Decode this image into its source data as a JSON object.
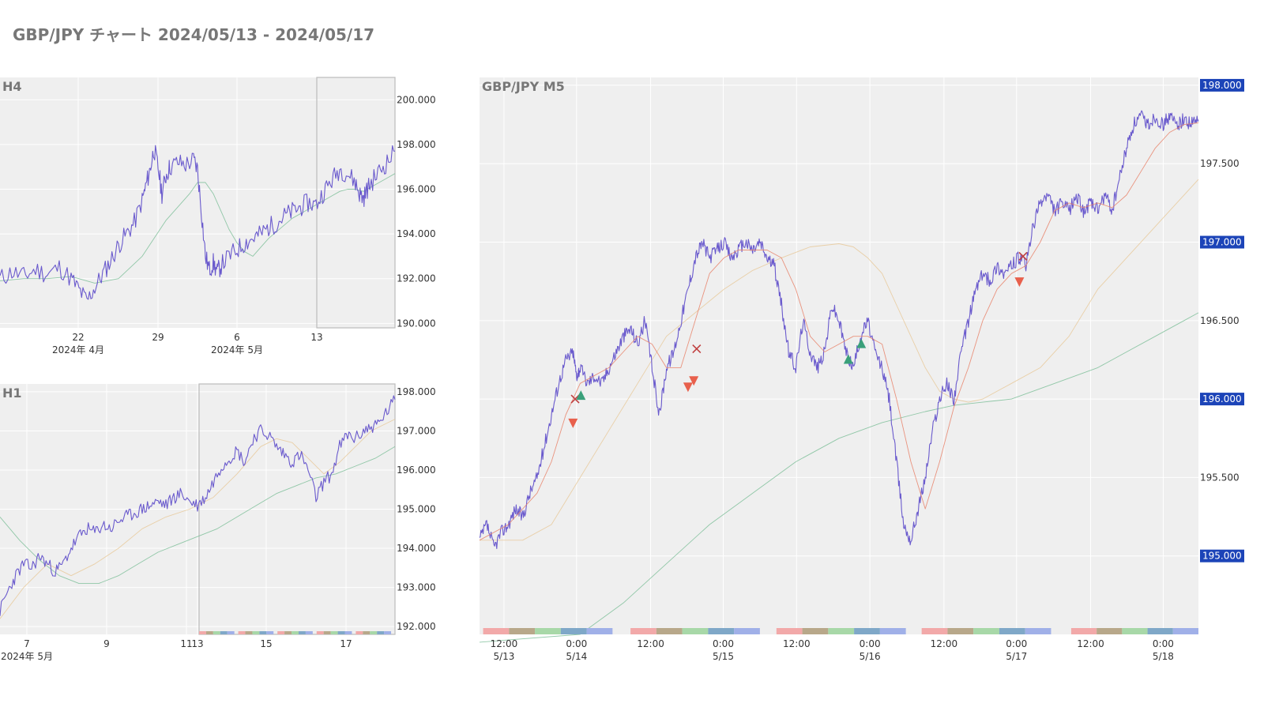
{
  "page": {
    "title": "GBP/JPY チャート 2024/05/13 - 2024/05/17"
  },
  "colors": {
    "price": "#6a5acd",
    "ma_short": "#e8826a",
    "ma_mid": "#e8c99a",
    "ma_long": "#7fbf9a",
    "buy": "#3aa07a",
    "sell": "#e8604c",
    "exit": "#c04040",
    "badge": "#1c44b8",
    "plot_bg": "#efefef"
  },
  "chart_data": [
    {
      "id": "h4",
      "type": "line",
      "title": "H4",
      "ylim": [
        189.8,
        201.0
      ],
      "xlim": [
        0,
        100
      ],
      "yticks": [
        190.0,
        192.0,
        194.0,
        196.0,
        198.0,
        200.0
      ],
      "ytick_labels": [
        "190.000",
        "192.000",
        "194.000",
        "196.000",
        "198.000",
        "200.000"
      ],
      "xticks": [
        {
          "x": 19.8,
          "label": "22",
          "sub": "2024年 4月"
        },
        {
          "x": 40.0,
          "label": "29",
          "sub": ""
        },
        {
          "x": 60.0,
          "label": "6",
          "sub": "2024年 5月"
        },
        {
          "x": 80.2,
          "label": "13",
          "sub": ""
        }
      ],
      "highlight": [
        80.2,
        100
      ],
      "series": [
        {
          "role": "price",
          "x": [
            0,
            3,
            6,
            9,
            12,
            15,
            18,
            20,
            22,
            24,
            26,
            28,
            30,
            32,
            34,
            36,
            37,
            38,
            39,
            40,
            41,
            42,
            43,
            45,
            47,
            49,
            50,
            51,
            52,
            53,
            54,
            55,
            56,
            58,
            60,
            62,
            64,
            66,
            68,
            70,
            72,
            74,
            76,
            78,
            80,
            82,
            84,
            86,
            88,
            90,
            91,
            92,
            93,
            94,
            96,
            98,
            100
          ],
          "y": [
            192.0,
            192.3,
            192.1,
            192.4,
            192.2,
            192.5,
            192.0,
            191.5,
            191.0,
            191.6,
            192.2,
            192.8,
            193.5,
            194.0,
            194.5,
            195.5,
            196.2,
            196.9,
            197.8,
            197.0,
            195.8,
            196.6,
            197.0,
            197.2,
            197.1,
            197.3,
            196.9,
            195.0,
            193.0,
            192.4,
            192.7,
            192.3,
            192.6,
            193.0,
            193.3,
            193.6,
            193.8,
            194.0,
            194.3,
            194.5,
            194.8,
            195.0,
            195.2,
            195.4,
            195.3,
            195.9,
            196.4,
            196.9,
            196.7,
            196.3,
            195.8,
            195.6,
            196.0,
            196.3,
            196.8,
            197.2,
            197.7
          ]
        },
        {
          "role": "ma_long",
          "x": [
            0,
            6,
            12,
            18,
            24,
            30,
            36,
            42,
            48,
            50,
            52,
            54,
            56,
            58,
            60,
            62,
            64,
            66,
            68,
            70,
            72,
            74,
            76,
            78,
            80,
            82,
            84,
            86,
            88,
            90,
            92,
            94,
            96,
            98,
            100
          ],
          "y": [
            191.9,
            192.0,
            192.0,
            192.1,
            191.8,
            192.0,
            193.0,
            194.6,
            195.8,
            196.3,
            196.3,
            195.8,
            195.0,
            194.2,
            193.6,
            193.2,
            193.0,
            193.4,
            193.8,
            194.1,
            194.4,
            194.7,
            194.9,
            195.1,
            195.3,
            195.5,
            195.7,
            195.9,
            196.0,
            196.0,
            195.9,
            196.1,
            196.3,
            196.5,
            196.7
          ]
        }
      ]
    },
    {
      "id": "h1",
      "type": "line",
      "title": "H1",
      "ylim": [
        191.8,
        198.2
      ],
      "xlim": [
        0,
        100
      ],
      "yticks": [
        192.0,
        193.0,
        194.0,
        195.0,
        196.0,
        197.0,
        198.0
      ],
      "ytick_labels": [
        "192.000",
        "193.000",
        "194.000",
        "195.000",
        "196.000",
        "197.000",
        "198.000"
      ],
      "xticks": [
        {
          "x": 6.8,
          "label": "7",
          "sub": "2024年 5月"
        },
        {
          "x": 27.0,
          "label": "9",
          "sub": ""
        },
        {
          "x": 47.2,
          "label": "11",
          "sub": ""
        },
        {
          "x": 50.0,
          "label": "13",
          "sub": ""
        },
        {
          "x": 67.4,
          "label": "15",
          "sub": ""
        },
        {
          "x": 87.6,
          "label": "17",
          "sub": ""
        }
      ],
      "highlight": [
        50.4,
        100
      ],
      "session_bar": true,
      "series": [
        {
          "role": "price",
          "x": [
            0,
            2,
            4,
            6,
            8,
            10,
            12,
            14,
            16,
            18,
            20,
            22,
            24,
            26,
            28,
            30,
            32,
            34,
            36,
            38,
            40,
            42,
            44,
            46,
            48,
            50,
            52,
            54,
            56,
            58,
            60,
            62,
            64,
            66,
            68,
            70,
            72,
            74,
            76,
            78,
            80,
            82,
            84,
            86,
            88,
            90,
            92,
            94,
            96,
            98,
            100
          ],
          "y": [
            192.4,
            192.9,
            193.3,
            193.6,
            193.5,
            193.8,
            193.6,
            193.4,
            193.6,
            194.0,
            194.3,
            194.5,
            194.4,
            194.6,
            194.5,
            194.7,
            194.8,
            194.9,
            195.0,
            195.1,
            195.2,
            195.1,
            195.3,
            195.4,
            195.2,
            195.1,
            195.3,
            195.7,
            196.1,
            196.3,
            196.5,
            196.2,
            196.8,
            197.0,
            196.9,
            196.6,
            196.4,
            196.2,
            196.4,
            196.0,
            195.3,
            195.7,
            195.9,
            196.6,
            196.9,
            196.8,
            197.0,
            197.1,
            197.2,
            197.5,
            197.8
          ]
        },
        {
          "role": "ma_mid",
          "x": [
            0,
            6,
            12,
            18,
            24,
            30,
            36,
            42,
            48,
            54,
            60,
            66,
            70,
            74,
            78,
            82,
            86,
            90,
            94,
            98,
            100
          ],
          "y": [
            192.2,
            193.0,
            193.6,
            193.3,
            193.6,
            194.0,
            194.5,
            194.8,
            195.0,
            195.3,
            195.9,
            196.6,
            196.8,
            196.7,
            196.3,
            195.9,
            196.2,
            196.6,
            197.0,
            197.2,
            197.3
          ]
        },
        {
          "role": "ma_long",
          "x": [
            0,
            5,
            10,
            15,
            20,
            25,
            30,
            35,
            40,
            45,
            50,
            55,
            60,
            65,
            70,
            75,
            80,
            85,
            90,
            95,
            100
          ],
          "y": [
            194.8,
            194.2,
            193.7,
            193.3,
            193.1,
            193.1,
            193.3,
            193.6,
            193.9,
            194.1,
            194.3,
            194.5,
            194.8,
            195.1,
            195.4,
            195.6,
            195.8,
            195.9,
            196.1,
            196.3,
            196.6
          ]
        }
      ]
    },
    {
      "id": "m5",
      "type": "line",
      "title": "GBP/JPY M5",
      "ylim": [
        194.5,
        198.05
      ],
      "xlim": [
        0,
        100
      ],
      "yticks": [
        195.0,
        195.5,
        196.0,
        196.5,
        197.0,
        197.5,
        198.0
      ],
      "ytick_labels": [
        "195.000",
        "195.500",
        "196.000",
        "196.500",
        "197.000",
        "197.500",
        "198.000"
      ],
      "badge_ticks": [
        195.0,
        196.0,
        197.0,
        198.0
      ],
      "xticks": [
        {
          "x": 3.4,
          "label": "12:00",
          "sub": "5/13"
        },
        {
          "x": 13.5,
          "label": "0:00",
          "sub": "5/14"
        },
        {
          "x": 23.8,
          "label": "12:00",
          "sub": ""
        },
        {
          "x": 33.9,
          "label": "0:00",
          "sub": "5/15"
        },
        {
          "x": 44.1,
          "label": "12:00",
          "sub": ""
        },
        {
          "x": 54.3,
          "label": "0:00",
          "sub": "5/16"
        },
        {
          "x": 64.6,
          "label": "12:00",
          "sub": ""
        },
        {
          "x": 74.7,
          "label": "0:00",
          "sub": "5/17"
        },
        {
          "x": 85.0,
          "label": "12:00",
          "sub": ""
        },
        {
          "x": 95.1,
          "label": "0:00",
          "sub": "5/18"
        }
      ],
      "session_days": [
        [
          0.5,
          18.5
        ],
        [
          21.0,
          39.0
        ],
        [
          41.3,
          59.3
        ],
        [
          61.5,
          79.5
        ],
        [
          82.3,
          100
        ]
      ],
      "series": [
        {
          "role": "price",
          "x": [
            0,
            1,
            2,
            3,
            4,
            5,
            6,
            7,
            8,
            9,
            10,
            11,
            12,
            13,
            13.5,
            14,
            15,
            16,
            17,
            18,
            19,
            20,
            21,
            22,
            23,
            24,
            25,
            26,
            27,
            28,
            29,
            30,
            31,
            32,
            33,
            34,
            35,
            36,
            37,
            38,
            39,
            40,
            41,
            42,
            43,
            44,
            45,
            46,
            47,
            48,
            49,
            50,
            51,
            52,
            53,
            54,
            55,
            56,
            57,
            58,
            59,
            60,
            61,
            62,
            63,
            64,
            65,
            66,
            67,
            68,
            69,
            70,
            71,
            72,
            73,
            74,
            75,
            76,
            77,
            78,
            79,
            80,
            81,
            82,
            83,
            84,
            85,
            86,
            87,
            88,
            89,
            90,
            91,
            92,
            93,
            94,
            95,
            96,
            97,
            98,
            99,
            100
          ],
          "y": [
            195.1,
            195.2,
            195.05,
            195.15,
            195.2,
            195.3,
            195.25,
            195.4,
            195.5,
            195.7,
            195.9,
            196.1,
            196.25,
            196.3,
            196.15,
            196.2,
            196.1,
            196.15,
            196.1,
            196.2,
            196.3,
            196.4,
            196.45,
            196.35,
            196.5,
            196.2,
            195.9,
            196.2,
            196.3,
            196.5,
            196.7,
            196.9,
            197.0,
            196.9,
            196.95,
            197.0,
            196.9,
            196.95,
            197.0,
            196.95,
            197.0,
            196.9,
            196.85,
            196.6,
            196.3,
            196.2,
            196.5,
            196.3,
            196.2,
            196.3,
            196.6,
            196.5,
            196.3,
            196.2,
            196.4,
            196.5,
            196.3,
            196.2,
            196.0,
            195.6,
            195.2,
            195.1,
            195.3,
            195.5,
            195.8,
            196.0,
            196.1,
            196.0,
            196.3,
            196.5,
            196.7,
            196.8,
            196.75,
            196.85,
            196.8,
            196.85,
            196.9,
            196.85,
            197.1,
            197.25,
            197.3,
            197.2,
            197.25,
            197.2,
            197.3,
            197.2,
            197.25,
            197.2,
            197.3,
            197.2,
            197.4,
            197.6,
            197.75,
            197.8,
            197.75,
            197.8,
            197.75,
            197.8,
            197.75,
            197.78,
            197.75,
            197.78
          ]
        },
        {
          "role": "ma_short",
          "x": [
            0,
            4,
            8,
            10,
            12,
            14,
            16,
            18,
            20,
            22,
            24,
            26,
            28,
            30,
            32,
            34,
            36,
            38,
            40,
            42,
            44,
            46,
            48,
            50,
            52,
            54,
            56,
            58,
            60,
            62,
            64,
            66,
            68,
            70,
            72,
            74,
            76,
            78,
            80,
            82,
            84,
            86,
            88,
            90,
            92,
            94,
            96,
            98,
            100
          ],
          "y": [
            195.1,
            195.2,
            195.4,
            195.6,
            195.9,
            196.1,
            196.15,
            196.2,
            196.3,
            196.4,
            196.35,
            196.2,
            196.2,
            196.5,
            196.8,
            196.9,
            196.95,
            196.95,
            196.95,
            196.9,
            196.7,
            196.4,
            196.3,
            196.35,
            196.4,
            196.4,
            196.35,
            196.0,
            195.6,
            195.3,
            195.6,
            195.95,
            196.2,
            196.5,
            196.7,
            196.8,
            196.85,
            197.0,
            197.2,
            197.25,
            197.22,
            197.25,
            197.22,
            197.3,
            197.45,
            197.6,
            197.7,
            197.75,
            197.76
          ]
        },
        {
          "role": "ma_mid",
          "x": [
            0,
            6,
            10,
            14,
            18,
            22,
            26,
            30,
            34,
            38,
            42,
            46,
            50,
            52,
            54,
            56,
            58,
            60,
            62,
            64,
            66,
            68,
            70,
            74,
            78,
            82,
            86,
            90,
            94,
            98,
            100
          ],
          "y": [
            195.1,
            195.1,
            195.2,
            195.5,
            195.8,
            196.1,
            196.4,
            196.55,
            196.7,
            196.82,
            196.9,
            196.97,
            196.99,
            196.97,
            196.9,
            196.8,
            196.6,
            196.4,
            196.2,
            196.05,
            196.0,
            195.98,
            196.0,
            196.1,
            196.2,
            196.4,
            196.7,
            196.9,
            197.1,
            197.3,
            197.4
          ]
        },
        {
          "role": "ma_long",
          "x": [
            0,
            14,
            20,
            26,
            32,
            38,
            44,
            50,
            56,
            62,
            66,
            70,
            74,
            80,
            86,
            90,
            94,
            98,
            100
          ],
          "y": [
            194.45,
            194.5,
            194.7,
            194.95,
            195.2,
            195.4,
            195.6,
            195.75,
            195.85,
            195.92,
            195.96,
            195.98,
            196.0,
            196.1,
            196.2,
            196.3,
            196.4,
            196.5,
            196.55
          ]
        }
      ],
      "markers": [
        {
          "x": 13.0,
          "y": 195.85,
          "kind": "sell"
        },
        {
          "x": 13.3,
          "y": 196.0,
          "kind": "exit"
        },
        {
          "x": 14.1,
          "y": 196.02,
          "kind": "buy"
        },
        {
          "x": 29.0,
          "y": 196.08,
          "kind": "sell"
        },
        {
          "x": 29.8,
          "y": 196.12,
          "kind": "sell"
        },
        {
          "x": 30.2,
          "y": 196.32,
          "kind": "exit"
        },
        {
          "x": 51.3,
          "y": 196.25,
          "kind": "buy"
        },
        {
          "x": 53.1,
          "y": 196.35,
          "kind": "buy"
        },
        {
          "x": 75.1,
          "y": 196.75,
          "kind": "sell"
        },
        {
          "x": 75.6,
          "y": 196.91,
          "kind": "exit"
        }
      ]
    }
  ]
}
